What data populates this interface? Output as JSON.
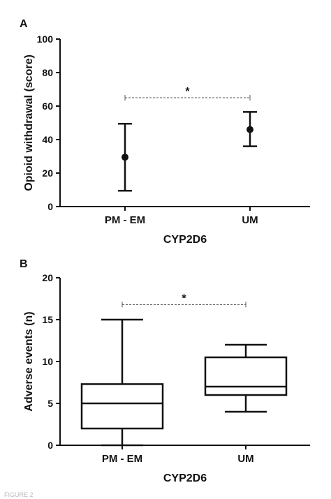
{
  "figure": {
    "footer_fragment": "FIGURE 2"
  },
  "chart_data": [
    {
      "panel": "A",
      "type": "scatter",
      "errorbars": true,
      "categories": [
        "PM - EM",
        "UM"
      ],
      "series": [
        {
          "points": [
            {
              "category": "PM - EM",
              "mean": 29.5,
              "err_low": 9.5,
              "err_high": 49.5
            },
            {
              "category": "UM",
              "mean": 46,
              "err_low": 36,
              "err_high": 56.5
            }
          ]
        }
      ],
      "xlabel": "CYP2D6",
      "ylabel": "Opioid withdrawal (score)",
      "ylim": [
        0,
        100
      ],
      "yticks": [
        0,
        20,
        40,
        60,
        80,
        100
      ],
      "significance": {
        "label": "*",
        "between": [
          "PM - EM",
          "UM"
        ],
        "y": 65
      },
      "grid": false
    },
    {
      "panel": "B",
      "type": "box",
      "categories": [
        "PM - EM",
        "UM"
      ],
      "boxes": [
        {
          "category": "PM - EM",
          "min": 0,
          "q1": 2,
          "median": 5,
          "q3": 7.3,
          "max": 15
        },
        {
          "category": "UM",
          "min": 4,
          "q1": 6,
          "median": 7,
          "q3": 10.5,
          "max": 12
        }
      ],
      "xlabel": "CYP2D6",
      "ylabel": "Adverse events (n)",
      "ylim": [
        0,
        20
      ],
      "yticks": [
        0,
        5,
        10,
        15,
        20
      ],
      "significance": {
        "label": "*",
        "between": [
          "PM - EM",
          "UM"
        ],
        "y": 16.8
      },
      "grid": false
    }
  ]
}
